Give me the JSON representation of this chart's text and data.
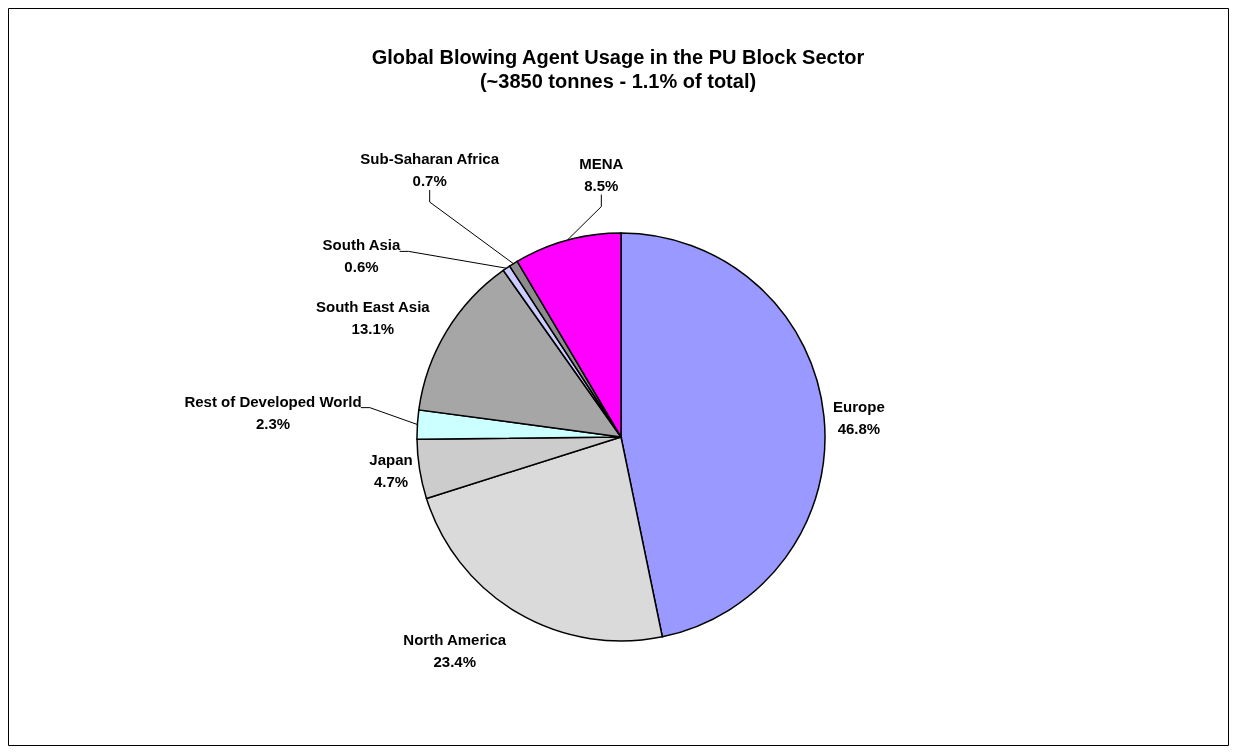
{
  "chart_data": {
    "type": "pie",
    "title": "Global Blowing Agent Usage in the PU Block Sector",
    "subtitle": "(~3850 tonnes - 1.1% of total)",
    "categories": [
      "Europe",
      "North America",
      "Japan",
      "Rest of Developed World",
      "South East Asia",
      "South Asia",
      "Sub-Saharan Africa",
      "MENA"
    ],
    "values": [
      46.8,
      23.4,
      4.7,
      2.3,
      13.1,
      0.6,
      0.7,
      8.5
    ],
    "value_labels": [
      "46.8%",
      "23.4%",
      "4.7%",
      "2.3%",
      "13.1%",
      "0.6%",
      "0.7%",
      "8.5%"
    ],
    "colors": [
      "#9999ff",
      "#dadada",
      "#cccccc",
      "#ccffff",
      "#a6a6a6",
      "#ccccff",
      "#8c8c8c",
      "#ff00ff"
    ]
  }
}
